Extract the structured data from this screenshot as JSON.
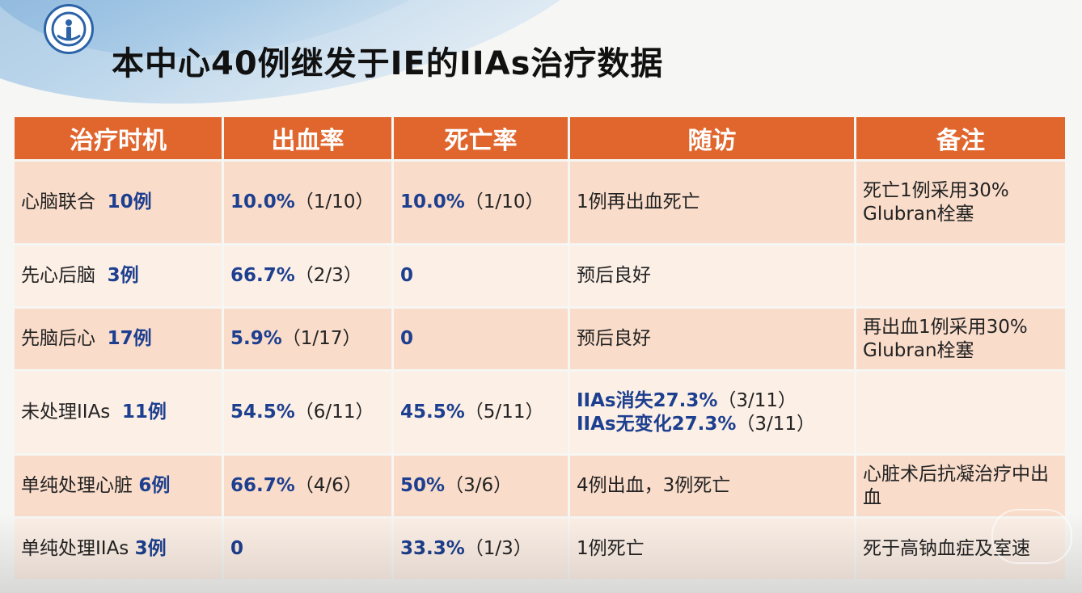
{
  "slide": {
    "title": "本中心40例继发于IE的IIAs治疗数据"
  },
  "table": {
    "headers": [
      "治疗时机",
      "出血率",
      "死亡率",
      "随访",
      "备注"
    ],
    "rows": [
      {
        "timing": "心脑联合",
        "count": "10例",
        "bleed_pct": "10.0%",
        "bleed_frac": "（1/10）",
        "death_pct": "10.0%",
        "death_frac": "（1/10）",
        "followup1_blue": "",
        "followup1": "1例再出血死亡",
        "followup2_blue": "",
        "followup2": "",
        "note": "死亡1例采用30% Glubran栓塞"
      },
      {
        "timing": "先心后脑",
        "count": "3例",
        "bleed_pct": "66.7%",
        "bleed_frac": "（2/3）",
        "death_pct": "0",
        "death_frac": "",
        "followup1_blue": "",
        "followup1": "预后良好",
        "followup2_blue": "",
        "followup2": "",
        "note": ""
      },
      {
        "timing": "先脑后心",
        "count": "17例",
        "bleed_pct": "5.9%",
        "bleed_frac": "（1/17）",
        "death_pct": "0",
        "death_frac": "",
        "followup1_blue": "",
        "followup1": "预后良好",
        "followup2_blue": "",
        "followup2": "",
        "note": "再出血1例采用30% Glubran栓塞"
      },
      {
        "timing": "未处理IIAs",
        "count": "11例",
        "bleed_pct": "54.5%",
        "bleed_frac": "（6/11）",
        "death_pct": "45.5%",
        "death_frac": "（5/11）",
        "followup1_blue": "IIAs消失27.3%",
        "followup1": "（3/11）",
        "followup2_blue": "IIAs无变化27.3%",
        "followup2": "（3/11）",
        "note": ""
      },
      {
        "timing": "单纯处理心脏",
        "count": "6例",
        "bleed_pct": "66.7%",
        "bleed_frac": "（4/6）",
        "death_pct": "50%",
        "death_frac": "（3/6）",
        "followup1_blue": "",
        "followup1": "4例出血，3例死亡",
        "followup2_blue": "",
        "followup2": "",
        "note": "心脏术后抗凝治疗中出血"
      },
      {
        "timing": "单纯处理IIAs",
        "count": "3例",
        "bleed_pct": "0",
        "bleed_frac": "",
        "death_pct": "33.3%",
        "death_frac": "（1/3）",
        "followup1_blue": "",
        "followup1": "1例死亡",
        "followup2_blue": "",
        "followup2": "",
        "note": "死于高钠血症及室速"
      }
    ]
  },
  "colors": {
    "header_bg": "#e0662d",
    "row_odd_bg": "#f9dcca",
    "row_even_bg": "#fcefe6",
    "highlight_text": "#1d3f8f"
  }
}
